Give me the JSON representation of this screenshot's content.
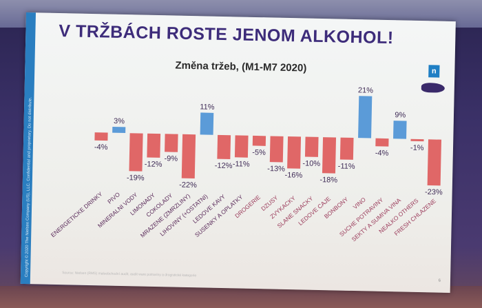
{
  "slide": {
    "title": "V TRŽBÁCH ROSTE JENOM ALKOHOL!",
    "subtitle": "Změna tržeb, (M1-M7 2020)",
    "logo": "n",
    "side_text": "Copyright © 2020 The Nielsen Company (US), LLC. Confidential and proprietary. Do not distribute.",
    "source": "Source: Nielsen (RMS) maloobchodní audit, audit ware potraviny a drogistické kategorie",
    "page_number": "6"
  },
  "chart_data": {
    "type": "bar",
    "title": "Změna tržeb, (M1-M7 2020)",
    "categories": [
      "ENERGETICKE DRINKY",
      "PIVO",
      "MINERALNI VODY",
      "LIMONADY",
      "COKOLADY",
      "MRAZENE (ZMRZLINY)",
      "LIHOVINY (+OSTATNI)",
      "LEDOVE KAVY",
      "SUSENKY A OPLATKY",
      "DROGERIE",
      "DZUSY",
      "ZVYKACKY",
      "SLANE SNACKY",
      "LEDOVE CAJE",
      "BONBONY",
      "VINO",
      "SUCHE POTRAVINY",
      "SEKTY A SUMIVA VINA",
      "NEALKO OTHERS",
      "FRESH CHLAZENE"
    ],
    "values": [
      -4,
      3,
      -19,
      -12,
      -9,
      -22,
      11,
      -12,
      -11,
      -5,
      -13,
      -16,
      -10,
      -18,
      -11,
      21,
      -4,
      9,
      -1,
      -23
    ],
    "data_labels": [
      "-4%",
      "3%",
      "-19%",
      "-12%",
      "-9%",
      "-22%",
      "11%",
      "-12%",
      "-11%",
      "-5%",
      "-13%",
      "-16%",
      "-10%",
      "-18%",
      "-11%",
      "21%",
      "-4%",
      "9%",
      "-1%",
      "-23%"
    ],
    "unit": "%",
    "colors": {
      "positive": "#5b9bd8",
      "negative": "#e06767"
    },
    "grid": false,
    "legend": "none"
  }
}
